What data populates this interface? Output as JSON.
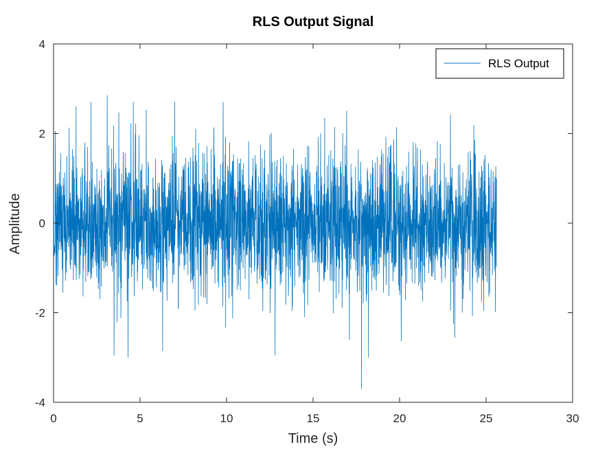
{
  "chart_data": {
    "type": "line",
    "title": "RLS Output Signal",
    "xlabel": "Time (s)",
    "ylabel": "Amplitude",
    "xlim": [
      0,
      30
    ],
    "ylim": [
      -4,
      4
    ],
    "xticks": [
      0,
      5,
      10,
      15,
      20,
      25,
      30
    ],
    "yticks": [
      -4,
      -2,
      0,
      2,
      4
    ],
    "xtick_labels": [
      "0",
      "5",
      "10",
      "15",
      "20",
      "25",
      "30"
    ],
    "ytick_labels": [
      "-4",
      "-2",
      "0",
      "2",
      "4"
    ],
    "grid": false,
    "legend": {
      "position": "top-right",
      "entries": [
        "RLS Output"
      ]
    },
    "series": [
      {
        "name": "RLS Output",
        "color": "#0072BD",
        "x_range": [
          0,
          25.6
        ],
        "approx_std": 0.8,
        "peaks": [
          {
            "x": 0.1,
            "y": 2.05
          },
          {
            "x": 1.3,
            "y": 2.6
          },
          {
            "x": 3.1,
            "y": 2.85
          },
          {
            "x": 7.0,
            "y": 2.7
          },
          {
            "x": 9.8,
            "y": 2.7
          },
          {
            "x": 23.2,
            "y": 3.0
          },
          {
            "x": 3.5,
            "y": -2.95
          },
          {
            "x": 4.3,
            "y": -3.0
          },
          {
            "x": 6.3,
            "y": -2.85
          },
          {
            "x": 12.8,
            "y": -2.95
          },
          {
            "x": 17.1,
            "y": -2.6
          },
          {
            "x": 17.8,
            "y": -3.7
          },
          {
            "x": 18.2,
            "y": -3.0
          },
          {
            "x": 23.2,
            "y": -2.55
          }
        ]
      }
    ]
  }
}
